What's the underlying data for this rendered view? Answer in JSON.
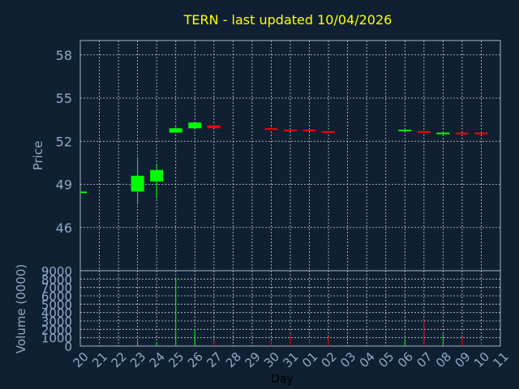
{
  "chart_data": {
    "type": "candlestick",
    "title": "TERN - last updated 10/04/2026",
    "colors": {
      "background": "#0f2032",
      "axis": "#a9b6c9",
      "grid": "#c8ced8",
      "label": "#8fa9c9",
      "title": "#ffff00",
      "up": "#00ff00",
      "down": "#ff0000"
    },
    "grid": true,
    "xlabel": "Day",
    "x_tick_labels": [
      "20",
      "21",
      "22",
      "23",
      "24",
      "25",
      "26",
      "27",
      "28",
      "29",
      "30",
      "31",
      "01",
      "02",
      "03",
      "04",
      "05",
      "06",
      "07",
      "08",
      "09",
      "10",
      "11"
    ],
    "price": {
      "ylabel": "Price",
      "ylim": [
        43,
        59
      ],
      "y_ticks": [
        46,
        49,
        52,
        55,
        58
      ],
      "candles": [
        {
          "day": "20",
          "open": 48.5,
          "high": 48.5,
          "low": 48.5,
          "close": 48.5
        },
        {
          "day": "23",
          "open": 48.5,
          "high": 50.9,
          "low": 47.6,
          "close": 49.6
        },
        {
          "day": "24",
          "open": 49.2,
          "high": 50.4,
          "low": 48.0,
          "close": 50.0
        },
        {
          "day": "25",
          "open": 52.6,
          "high": 53.0,
          "low": 52.6,
          "close": 52.9
        },
        {
          "day": "26",
          "open": 52.9,
          "high": 53.3,
          "low": 52.8,
          "close": 53.3
        },
        {
          "day": "27",
          "open": 53.1,
          "high": 53.1,
          "low": 52.9,
          "close": 52.9
        },
        {
          "day": "30",
          "open": 52.9,
          "high": 53.0,
          "low": 52.8,
          "close": 52.8
        },
        {
          "day": "31",
          "open": 52.8,
          "high": 52.8,
          "low": 52.7,
          "close": 52.7
        },
        {
          "day": "01",
          "open": 52.8,
          "high": 52.8,
          "low": 52.7,
          "close": 52.7
        },
        {
          "day": "02",
          "open": 52.7,
          "high": 52.7,
          "low": 52.6,
          "close": 52.6
        },
        {
          "day": "06",
          "open": 52.7,
          "high": 52.8,
          "low": 52.7,
          "close": 52.8
        },
        {
          "day": "07",
          "open": 52.7,
          "high": 52.7,
          "low": 52.5,
          "close": 52.6
        },
        {
          "day": "08",
          "open": 52.5,
          "high": 52.6,
          "low": 52.5,
          "close": 52.6
        },
        {
          "day": "09",
          "open": 52.6,
          "high": 52.6,
          "low": 52.5,
          "close": 52.5
        },
        {
          "day": "10",
          "open": 52.6,
          "high": 52.6,
          "low": 52.5,
          "close": 52.5
        }
      ]
    },
    "volume": {
      "ylabel": "Volume (0000)",
      "ylim": [
        0,
        9000
      ],
      "y_ticks": [
        0,
        1000,
        2000,
        3000,
        4000,
        5000,
        6000,
        7000,
        8000,
        9000
      ],
      "bars": [
        {
          "day": "23",
          "value": 600,
          "dir": "up"
        },
        {
          "day": "24",
          "value": 400,
          "dir": "up"
        },
        {
          "day": "25",
          "value": 8200,
          "dir": "up"
        },
        {
          "day": "26",
          "value": 2000,
          "dir": "up"
        },
        {
          "day": "27",
          "value": 700,
          "dir": "down"
        },
        {
          "day": "30",
          "value": 700,
          "dir": "down"
        },
        {
          "day": "31",
          "value": 1400,
          "dir": "down"
        },
        {
          "day": "01",
          "value": 900,
          "dir": "down"
        },
        {
          "day": "02",
          "value": 1100,
          "dir": "down"
        },
        {
          "day": "06",
          "value": 800,
          "dir": "up"
        },
        {
          "day": "07",
          "value": 3100,
          "dir": "down"
        },
        {
          "day": "08",
          "value": 1400,
          "dir": "up"
        },
        {
          "day": "09",
          "value": 1100,
          "dir": "down"
        },
        {
          "day": "10",
          "value": 500,
          "dir": "down"
        }
      ]
    }
  }
}
